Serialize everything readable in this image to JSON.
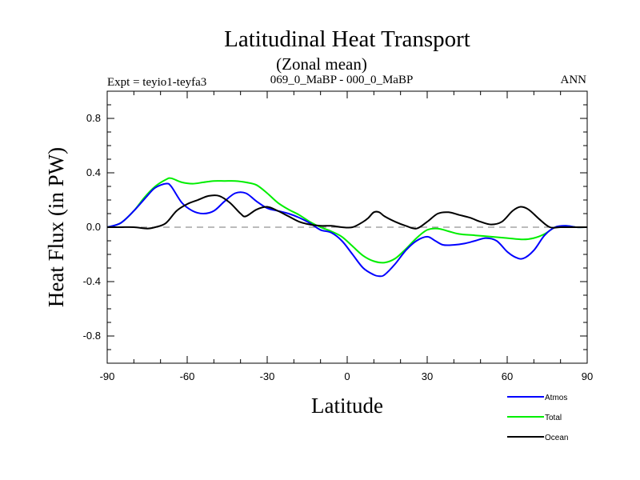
{
  "chart_data": {
    "type": "line",
    "title": "Latitudinal Heat Transport",
    "subtitle": "(Zonal mean)",
    "left_string": "Expt = teyio1-teyfa3",
    "center_string": "069_0_MaBP - 000_0_MaBP",
    "right_string": "ANN",
    "xlabel": "Latitude",
    "ylabel": "Heat Flux (in PW)",
    "xlim": [
      -90,
      90
    ],
    "ylim": [
      -1.0,
      1.0
    ],
    "x_ticks": [
      -90,
      -60,
      -30,
      0,
      30,
      60,
      90
    ],
    "x_tick_labels": [
      "-90",
      "-60",
      "-30",
      "0",
      "30",
      "60",
      "90"
    ],
    "y_ticks": [
      -0.8,
      -0.4,
      0.0,
      0.4,
      0.8
    ],
    "y_tick_labels": [
      "-0.8",
      "-0.4",
      "0.0",
      "0.4",
      "0.8"
    ],
    "zero_line": "dashed",
    "legend_position": "bottom-right",
    "series": [
      {
        "name": "Atmos",
        "color": "#0000ff",
        "x": [
          -90,
          -85,
          -80,
          -75,
          -72,
          -68,
          -66,
          -62,
          -58,
          -54,
          -50,
          -46,
          -42,
          -38,
          -34,
          -30,
          -26,
          -22,
          -18,
          -14,
          -10,
          -6,
          -2,
          2,
          6,
          10,
          12,
          14,
          18,
          22,
          26,
          30,
          33,
          36,
          40,
          44,
          48,
          52,
          56,
          60,
          63,
          66,
          70,
          74,
          78,
          82,
          86,
          90
        ],
        "y": [
          0.0,
          0.03,
          0.12,
          0.23,
          0.29,
          0.32,
          0.3,
          0.18,
          0.12,
          0.1,
          0.12,
          0.19,
          0.25,
          0.25,
          0.19,
          0.14,
          0.12,
          0.1,
          0.07,
          0.03,
          -0.02,
          -0.04,
          -0.1,
          -0.2,
          -0.3,
          -0.35,
          -0.36,
          -0.35,
          -0.27,
          -0.17,
          -0.1,
          -0.07,
          -0.1,
          -0.13,
          -0.13,
          -0.12,
          -0.1,
          -0.08,
          -0.1,
          -0.18,
          -0.22,
          -0.23,
          -0.17,
          -0.06,
          0.0,
          0.01,
          0.0,
          0.0
        ]
      },
      {
        "name": "Total",
        "color": "#00ee00",
        "x": [
          -90,
          -85,
          -80,
          -76,
          -72,
          -68,
          -66,
          -62,
          -58,
          -54,
          -50,
          -46,
          -42,
          -38,
          -34,
          -30,
          -26,
          -22,
          -18,
          -14,
          -10,
          -6,
          -2,
          2,
          6,
          10,
          14,
          18,
          22,
          26,
          30,
          34,
          38,
          42,
          48,
          54,
          60,
          66,
          70,
          74,
          78,
          82,
          86,
          90
        ],
        "y": [
          0.0,
          0.03,
          0.12,
          0.22,
          0.3,
          0.35,
          0.36,
          0.33,
          0.32,
          0.33,
          0.34,
          0.34,
          0.34,
          0.33,
          0.31,
          0.25,
          0.18,
          0.13,
          0.09,
          0.04,
          0.0,
          -0.03,
          -0.07,
          -0.14,
          -0.21,
          -0.25,
          -0.26,
          -0.23,
          -0.16,
          -0.08,
          -0.02,
          -0.01,
          -0.03,
          -0.05,
          -0.06,
          -0.07,
          -0.08,
          -0.09,
          -0.08,
          -0.05,
          0.0,
          0.01,
          0.0,
          0.0
        ]
      },
      {
        "name": "Ocean",
        "color": "#000000",
        "x": [
          -90,
          -85,
          -80,
          -75,
          -72,
          -68,
          -64,
          -60,
          -56,
          -52,
          -48,
          -44,
          -40,
          -38,
          -34,
          -30,
          -26,
          -22,
          -18,
          -14,
          -10,
          -6,
          -2,
          2,
          6,
          8,
          10,
          12,
          14,
          18,
          22,
          26,
          30,
          34,
          38,
          42,
          46,
          50,
          54,
          58,
          62,
          65,
          68,
          72,
          76,
          80,
          85,
          90
        ],
        "y": [
          0.0,
          0.0,
          0.0,
          -0.01,
          0.0,
          0.03,
          0.12,
          0.17,
          0.2,
          0.23,
          0.23,
          0.18,
          0.1,
          0.08,
          0.13,
          0.15,
          0.12,
          0.08,
          0.04,
          0.02,
          0.01,
          0.01,
          0.0,
          0.0,
          0.04,
          0.07,
          0.11,
          0.11,
          0.08,
          0.04,
          0.01,
          -0.01,
          0.04,
          0.1,
          0.11,
          0.09,
          0.07,
          0.04,
          0.02,
          0.04,
          0.12,
          0.15,
          0.13,
          0.06,
          0.0,
          0.0,
          0.0,
          0.0
        ]
      }
    ]
  }
}
